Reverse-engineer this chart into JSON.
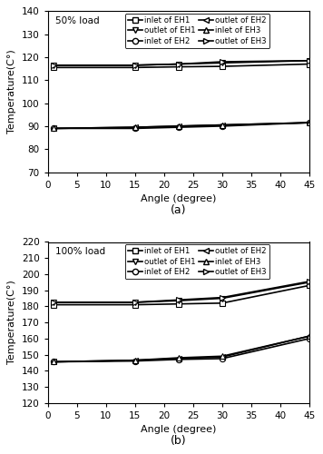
{
  "angles": [
    1,
    15,
    22.5,
    30,
    45
  ],
  "subplot_a": {
    "title": "50% load",
    "ylim": [
      70,
      140
    ],
    "yticks": [
      70,
      80,
      90,
      100,
      110,
      120,
      130,
      140
    ],
    "ylabel": "Temperature(C°)",
    "xlabel": "Angle (degree)",
    "label": "(a)",
    "inlet_EH1": [
      115.5,
      115.5,
      115.8,
      116.0,
      117.0
    ],
    "inlet_EH2": [
      89.0,
      89.0,
      89.5,
      90.0,
      91.5
    ],
    "inlet_EH3": [
      89.0,
      89.5,
      90.0,
      90.5,
      91.5
    ],
    "outlet_EH1": [
      116.5,
      116.5,
      117.0,
      117.5,
      118.5
    ],
    "outlet_EH2": [
      89.0,
      89.5,
      90.0,
      90.5,
      91.5
    ],
    "outlet_EH3": [
      116.5,
      116.5,
      117.0,
      118.0,
      118.5
    ]
  },
  "subplot_b": {
    "title": "100% load",
    "ylim": [
      120,
      220
    ],
    "yticks": [
      120,
      130,
      140,
      150,
      160,
      170,
      180,
      190,
      200,
      210,
      220
    ],
    "ylabel": "Temperature(C°)",
    "xlabel": "Angle (degree)",
    "label": "(b)",
    "inlet_EH1": [
      181.0,
      181.0,
      181.5,
      182.0,
      193.0
    ],
    "inlet_EH2": [
      145.5,
      146.0,
      147.0,
      147.5,
      160.0
    ],
    "inlet_EH3": [
      145.5,
      146.5,
      148.0,
      149.0,
      161.5
    ],
    "outlet_EH1": [
      182.5,
      182.5,
      183.5,
      185.0,
      195.0
    ],
    "outlet_EH2": [
      145.5,
      146.5,
      147.5,
      148.5,
      161.5
    ],
    "outlet_EH3": [
      182.5,
      182.5,
      184.0,
      185.5,
      195.5
    ]
  },
  "line_color": "#000000",
  "bg_color": "#ffffff",
  "xticks": [
    0,
    5,
    10,
    15,
    20,
    25,
    30,
    35,
    40,
    45
  ],
  "xlim": [
    0,
    45
  ]
}
